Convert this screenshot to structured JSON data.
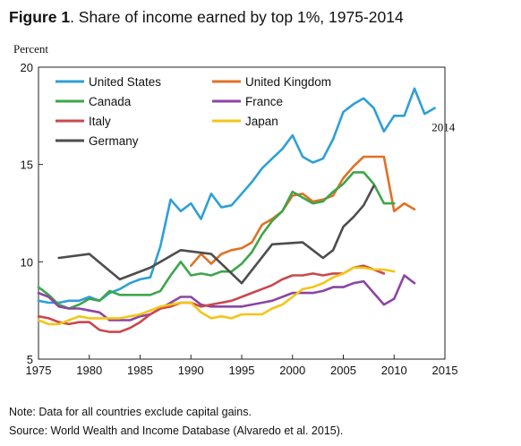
{
  "header": {
    "figure_label": "Figure 1",
    "title": ". Share of income earned by top 1%, 1975-2014"
  },
  "notes": {
    "note": "Note: Data for all countries exclude capital gains.",
    "source": "Source: World Wealth and Income Database (Alvaredo et al. 2015)."
  },
  "chart_data": {
    "type": "line",
    "title": "Share of income earned by top 1%, 1975-2014",
    "xlabel": "",
    "ylabel": "Percent",
    "xlim": [
      1975,
      2015
    ],
    "ylim": [
      5,
      20
    ],
    "x_ticks": [
      1975,
      1980,
      1985,
      1990,
      1995,
      2000,
      2005,
      2010,
      2015
    ],
    "y_ticks": [
      5,
      10,
      15,
      20
    ],
    "grid": false,
    "legend_position": "top-left",
    "annotations": [
      {
        "text": "2014",
        "x": 2013.7,
        "y": 16.7
      }
    ],
    "series": [
      {
        "name": "United States",
        "color": "#2e9fd8",
        "points": [
          [
            1975,
            8.0
          ],
          [
            1976,
            7.9
          ],
          [
            1977,
            7.9
          ],
          [
            1978,
            8.0
          ],
          [
            1979,
            8.0
          ],
          [
            1980,
            8.2
          ],
          [
            1981,
            8.0
          ],
          [
            1982,
            8.4
          ],
          [
            1983,
            8.6
          ],
          [
            1984,
            8.9
          ],
          [
            1985,
            9.1
          ],
          [
            1986,
            9.2
          ],
          [
            1987,
            10.8
          ],
          [
            1988,
            13.2
          ],
          [
            1989,
            12.6
          ],
          [
            1990,
            13.0
          ],
          [
            1991,
            12.2
          ],
          [
            1992,
            13.5
          ],
          [
            1993,
            12.8
          ],
          [
            1994,
            12.9
          ],
          [
            1995,
            13.5
          ],
          [
            1996,
            14.1
          ],
          [
            1997,
            14.8
          ],
          [
            1998,
            15.3
          ],
          [
            1999,
            15.8
          ],
          [
            2000,
            16.5
          ],
          [
            2001,
            15.4
          ],
          [
            2002,
            15.1
          ],
          [
            2003,
            15.3
          ],
          [
            2004,
            16.3
          ],
          [
            2005,
            17.7
          ],
          [
            2006,
            18.1
          ],
          [
            2007,
            18.4
          ],
          [
            2008,
            17.9
          ],
          [
            2009,
            16.7
          ],
          [
            2010,
            17.5
          ],
          [
            2011,
            17.5
          ],
          [
            2012,
            18.9
          ],
          [
            2013,
            17.6
          ],
          [
            2014,
            17.9
          ]
        ]
      },
      {
        "name": "United Kingdom",
        "color": "#e07125",
        "points": [
          [
            1990,
            9.8
          ],
          [
            1991,
            10.4
          ],
          [
            1992,
            9.9
          ],
          [
            1993,
            10.4
          ],
          [
            1994,
            10.6
          ],
          [
            1995,
            10.7
          ],
          [
            1996,
            11.0
          ],
          [
            1997,
            11.9
          ],
          [
            1998,
            12.2
          ],
          [
            1999,
            12.6
          ],
          [
            2000,
            13.4
          ],
          [
            2001,
            13.5
          ],
          [
            2002,
            13.1
          ],
          [
            2003,
            13.2
          ],
          [
            2004,
            13.4
          ],
          [
            2005,
            14.3
          ],
          [
            2006,
            14.9
          ],
          [
            2007,
            15.4
          ],
          [
            2008,
            15.4
          ],
          [
            2009,
            15.4
          ],
          [
            2010,
            12.6
          ],
          [
            2011,
            13.0
          ],
          [
            2012,
            12.7
          ]
        ]
      },
      {
        "name": "Canada",
        "color": "#3ca64a",
        "points": [
          [
            1975,
            8.7
          ],
          [
            1976,
            8.3
          ],
          [
            1977,
            7.8
          ],
          [
            1978,
            7.6
          ],
          [
            1979,
            7.8
          ],
          [
            1980,
            8.1
          ],
          [
            1981,
            8.0
          ],
          [
            1982,
            8.5
          ],
          [
            1983,
            8.3
          ],
          [
            1984,
            8.3
          ],
          [
            1985,
            8.3
          ],
          [
            1986,
            8.3
          ],
          [
            1987,
            8.5
          ],
          [
            1988,
            9.3
          ],
          [
            1989,
            10.0
          ],
          [
            1990,
            9.3
          ],
          [
            1991,
            9.4
          ],
          [
            1992,
            9.3
          ],
          [
            1993,
            9.5
          ],
          [
            1994,
            9.5
          ],
          [
            1995,
            9.9
          ],
          [
            1996,
            10.5
          ],
          [
            1997,
            11.4
          ],
          [
            1998,
            12.1
          ],
          [
            1999,
            12.6
          ],
          [
            2000,
            13.6
          ],
          [
            2001,
            13.3
          ],
          [
            2002,
            13.0
          ],
          [
            2003,
            13.1
          ],
          [
            2004,
            13.6
          ],
          [
            2005,
            14.0
          ],
          [
            2006,
            14.6
          ],
          [
            2007,
            14.6
          ],
          [
            2008,
            14.0
          ],
          [
            2009,
            13.0
          ],
          [
            2010,
            13.0
          ]
        ]
      },
      {
        "name": "France",
        "color": "#8c45a3",
        "points": [
          [
            1975,
            8.4
          ],
          [
            1976,
            8.2
          ],
          [
            1977,
            7.7
          ],
          [
            1978,
            7.6
          ],
          [
            1979,
            7.6
          ],
          [
            1980,
            7.5
          ],
          [
            1981,
            7.4
          ],
          [
            1982,
            7.0
          ],
          [
            1983,
            7.0
          ],
          [
            1984,
            7.0
          ],
          [
            1985,
            7.2
          ],
          [
            1986,
            7.3
          ],
          [
            1987,
            7.6
          ],
          [
            1988,
            7.9
          ],
          [
            1989,
            8.2
          ],
          [
            1990,
            8.2
          ],
          [
            1991,
            7.8
          ],
          [
            1992,
            7.7
          ],
          [
            1993,
            7.7
          ],
          [
            1994,
            7.7
          ],
          [
            1995,
            7.7
          ],
          [
            1996,
            7.8
          ],
          [
            1997,
            7.9
          ],
          [
            1998,
            8.0
          ],
          [
            1999,
            8.2
          ],
          [
            2000,
            8.4
          ],
          [
            2001,
            8.4
          ],
          [
            2002,
            8.4
          ],
          [
            2003,
            8.5
          ],
          [
            2004,
            8.7
          ],
          [
            2005,
            8.7
          ],
          [
            2006,
            8.9
          ],
          [
            2007,
            9.0
          ],
          [
            2008,
            8.4
          ],
          [
            2009,
            7.8
          ],
          [
            2010,
            8.1
          ],
          [
            2011,
            9.3
          ],
          [
            2012,
            8.9
          ]
        ]
      },
      {
        "name": "Italy",
        "color": "#c9484d",
        "points": [
          [
            1975,
            7.2
          ],
          [
            1976,
            7.1
          ],
          [
            1977,
            6.9
          ],
          [
            1978,
            6.8
          ],
          [
            1979,
            6.9
          ],
          [
            1980,
            6.9
          ],
          [
            1981,
            6.5
          ],
          [
            1982,
            6.4
          ],
          [
            1983,
            6.4
          ],
          [
            1984,
            6.6
          ],
          [
            1985,
            6.9
          ],
          [
            1986,
            7.3
          ],
          [
            1987,
            7.6
          ],
          [
            1988,
            7.7
          ],
          [
            1989,
            7.9
          ],
          [
            1990,
            7.9
          ],
          [
            1991,
            7.7
          ],
          [
            1992,
            7.8
          ],
          [
            1993,
            7.9
          ],
          [
            1994,
            8.0
          ],
          [
            1995,
            8.2
          ],
          [
            1996,
            8.4
          ],
          [
            1997,
            8.6
          ],
          [
            1998,
            8.8
          ],
          [
            1999,
            9.1
          ],
          [
            2000,
            9.3
          ],
          [
            2001,
            9.3
          ],
          [
            2002,
            9.4
          ],
          [
            2003,
            9.3
          ],
          [
            2004,
            9.4
          ],
          [
            2005,
            9.4
          ],
          [
            2006,
            9.7
          ],
          [
            2007,
            9.8
          ],
          [
            2008,
            9.6
          ],
          [
            2009,
            9.4
          ]
        ]
      },
      {
        "name": "Japan",
        "color": "#f4c518",
        "points": [
          [
            1975,
            7.0
          ],
          [
            1976,
            6.8
          ],
          [
            1977,
            6.8
          ],
          [
            1978,
            7.0
          ],
          [
            1979,
            7.2
          ],
          [
            1980,
            7.1
          ],
          [
            1981,
            7.1
          ],
          [
            1982,
            7.1
          ],
          [
            1983,
            7.1
          ],
          [
            1984,
            7.2
          ],
          [
            1985,
            7.3
          ],
          [
            1986,
            7.5
          ],
          [
            1987,
            7.7
          ],
          [
            1988,
            7.8
          ],
          [
            1989,
            7.9
          ],
          [
            1990,
            7.9
          ],
          [
            1991,
            7.4
          ],
          [
            1992,
            7.1
          ],
          [
            1993,
            7.2
          ],
          [
            1994,
            7.1
          ],
          [
            1995,
            7.3
          ],
          [
            1996,
            7.3
          ],
          [
            1997,
            7.3
          ],
          [
            1998,
            7.6
          ],
          [
            1999,
            7.8
          ],
          [
            2000,
            8.2
          ],
          [
            2001,
            8.6
          ],
          [
            2002,
            8.7
          ],
          [
            2003,
            8.9
          ],
          [
            2004,
            9.2
          ],
          [
            2005,
            9.4
          ],
          [
            2006,
            9.7
          ],
          [
            2007,
            9.7
          ],
          [
            2008,
            9.6
          ],
          [
            2009,
            9.6
          ],
          [
            2010,
            9.5
          ]
        ]
      },
      {
        "name": "Germany",
        "color": "#4d4d4d",
        "points": [
          [
            1977,
            10.2
          ],
          [
            1980,
            10.4
          ],
          [
            1983,
            9.1
          ],
          [
            1986,
            9.7
          ],
          [
            1989,
            10.6
          ],
          [
            1992,
            10.4
          ],
          [
            1995,
            8.9
          ],
          [
            1998,
            10.9
          ],
          [
            2001,
            11.0
          ],
          [
            2002,
            10.6
          ],
          [
            2003,
            10.2
          ],
          [
            2004,
            10.6
          ],
          [
            2005,
            11.8
          ],
          [
            2006,
            12.3
          ],
          [
            2007,
            12.9
          ],
          [
            2008,
            13.9
          ]
        ]
      }
    ]
  }
}
